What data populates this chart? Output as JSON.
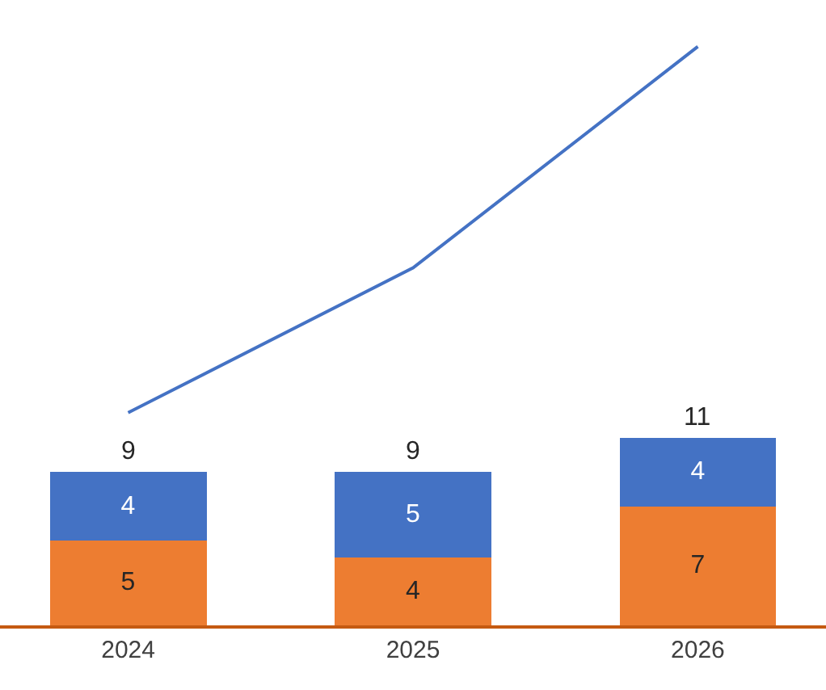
{
  "chart_data": {
    "type": "bar",
    "stacked": true,
    "categories": [
      "2024",
      "2025",
      "2026"
    ],
    "series": [
      {
        "color": "#ed7d31",
        "values": [
          5,
          4,
          7
        ],
        "value_labels": [
          "5",
          "4",
          "7"
        ]
      },
      {
        "color": "#4472c4",
        "values": [
          4,
          5,
          4
        ],
        "value_labels": [
          "4",
          "5",
          "4"
        ]
      },
      {
        "type": "line",
        "color": "#4472c4",
        "values": [
          12.5,
          21,
          34
        ]
      }
    ],
    "totals": [
      "9",
      "9",
      "11"
    ],
    "tick_labels": "x",
    "legend": false,
    "marker": "none"
  }
}
